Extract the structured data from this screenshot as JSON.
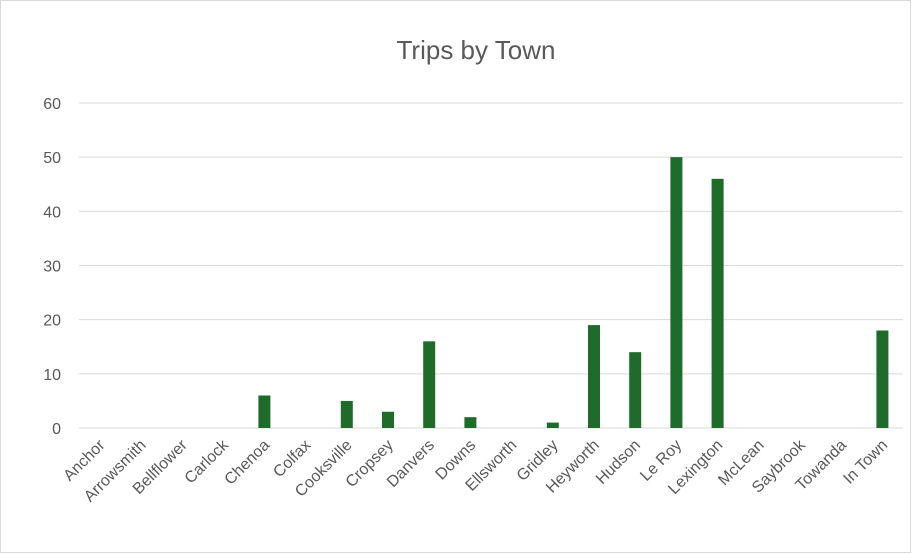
{
  "chart_data": {
    "type": "bar",
    "title": "Trips by Town",
    "xlabel": "",
    "ylabel": "",
    "ylim": [
      0,
      60
    ],
    "yticks": [
      0,
      10,
      20,
      30,
      40,
      50,
      60
    ],
    "grid": true,
    "legend": "none",
    "bar_color": "#1e6b2a",
    "categories": [
      "Anchor",
      "Arrowsmith",
      "Bellflower",
      "Carlock",
      "Chenoa",
      "Colfax",
      "Cooksville",
      "Cropsey",
      "Danvers",
      "Downs",
      "Ellsworth",
      "Gridley",
      "Heyworth",
      "Hudson",
      "Le Roy",
      "Lexington",
      "McLean",
      "Saybrook",
      "Towanda",
      "In Town"
    ],
    "values": [
      0,
      0,
      0,
      0,
      6,
      0,
      5,
      3,
      16,
      2,
      0,
      1,
      19,
      14,
      50,
      46,
      0,
      0,
      0,
      18
    ]
  }
}
